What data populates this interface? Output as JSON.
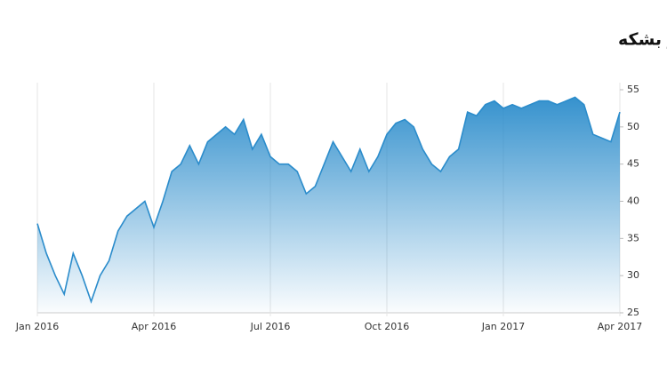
{
  "chart_data": {
    "type": "area",
    "title": "بهای نفت خام آمریکا در بازارهای جهانی – دلار بر هر بشکه",
    "categories": [
      "Jan 2016",
      null,
      null,
      null,
      null,
      null,
      null,
      null,
      null,
      null,
      null,
      null,
      null,
      "Apr 2016",
      null,
      null,
      null,
      null,
      null,
      null,
      null,
      null,
      null,
      null,
      null,
      null,
      "Jul 2016",
      null,
      null,
      null,
      null,
      null,
      null,
      null,
      null,
      null,
      null,
      null,
      null,
      "Oct 2016",
      null,
      null,
      null,
      null,
      null,
      null,
      null,
      null,
      null,
      null,
      null,
      null,
      "Jan 2017",
      null,
      null,
      null,
      null,
      null,
      null,
      null,
      null,
      null,
      null,
      null,
      null,
      "Apr 2017"
    ],
    "values": [
      37,
      33,
      30,
      27.5,
      33,
      30,
      26.5,
      30,
      32,
      36,
      38,
      39,
      40,
      36.5,
      40,
      44,
      45,
      47.5,
      45,
      48,
      49,
      50,
      49,
      51,
      47,
      49,
      46,
      45,
      45,
      44,
      41,
      42,
      45,
      48,
      46,
      44,
      47,
      44,
      46,
      49,
      50.5,
      51,
      50,
      47,
      45,
      44,
      46,
      47,
      52,
      51.5,
      53,
      53.5,
      52.5,
      53,
      52.5,
      53,
      53.5,
      53.5,
      53,
      53.5,
      54,
      53,
      49,
      48.5,
      48,
      52
    ],
    "color": "#2b8ccb",
    "ylim": [
      25,
      55
    ],
    "yticks": [
      25,
      30,
      35,
      40,
      45,
      50,
      55
    ],
    "grid": true
  }
}
